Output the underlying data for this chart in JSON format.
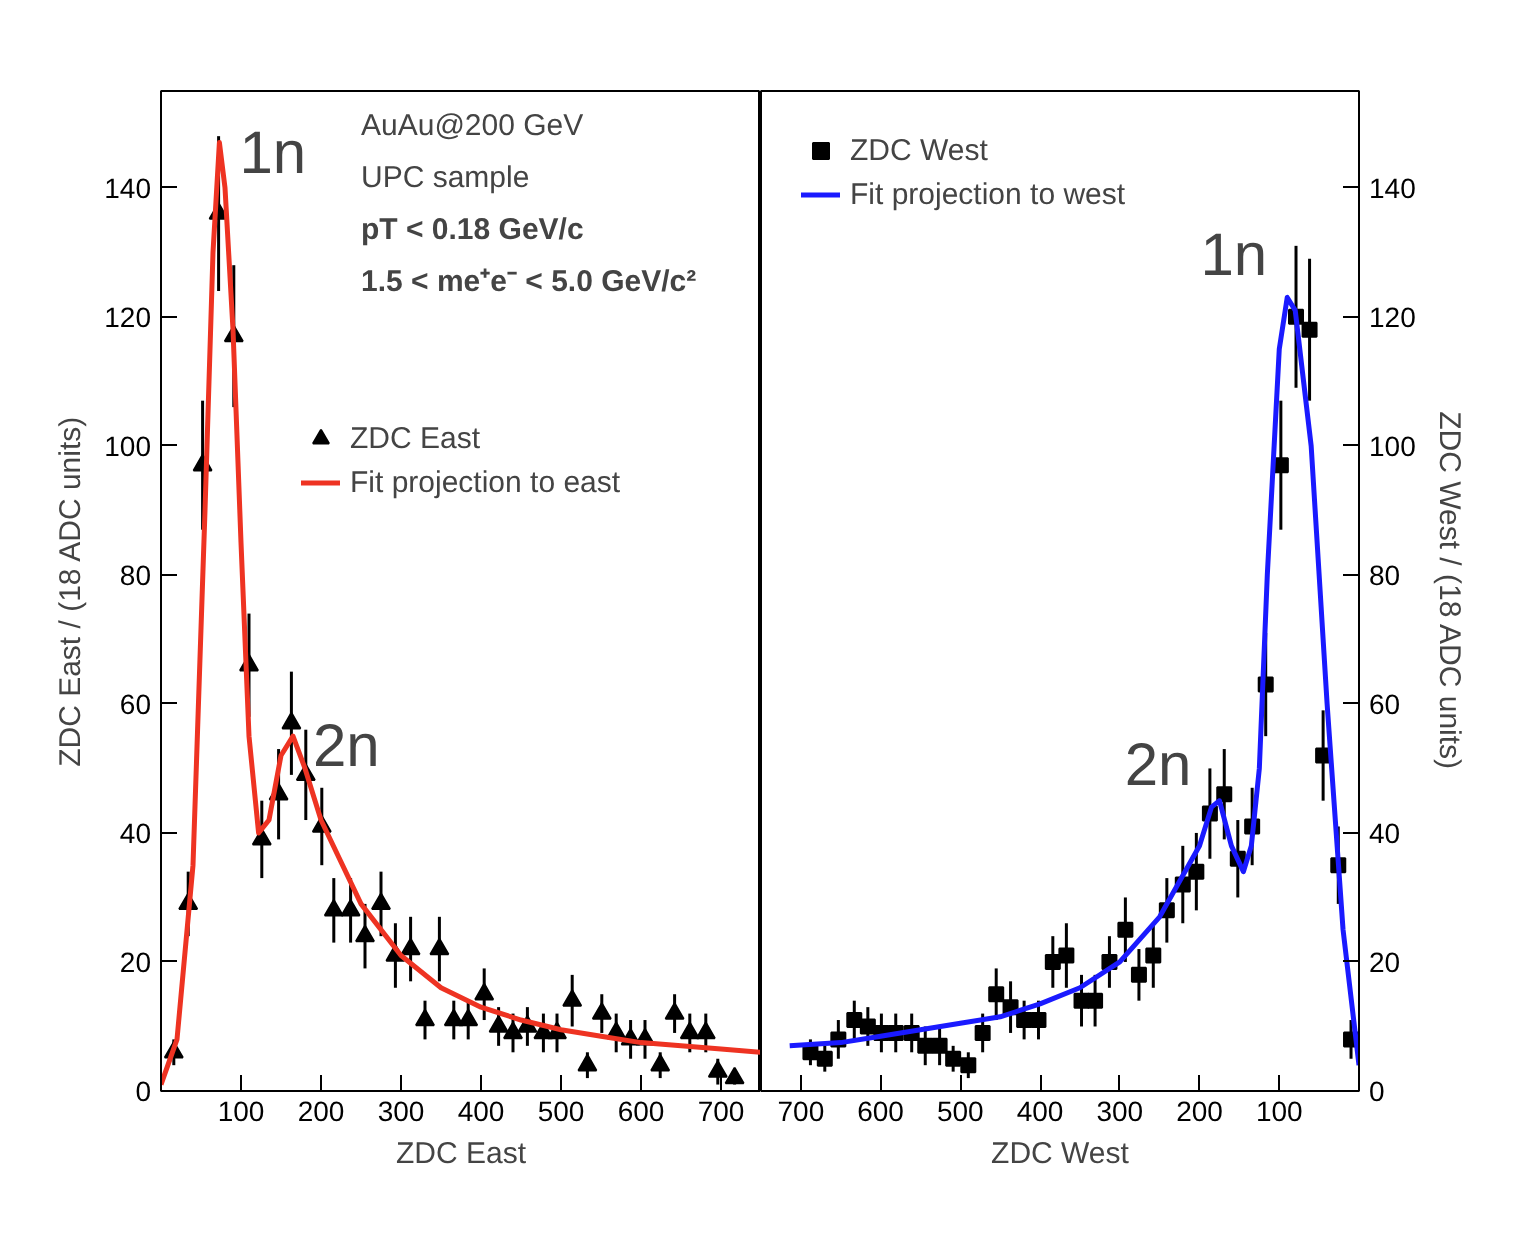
{
  "chart_data": [
    {
      "type": "scatter",
      "xlabel": "ZDC East",
      "ylabel": "ZDC East / (18 ADC units)",
      "xlim": [
        0,
        750
      ],
      "ylim": [
        0,
        155
      ],
      "xticks": [
        100,
        200,
        300,
        400,
        500,
        600,
        700
      ],
      "yticks": [
        0,
        20,
        40,
        60,
        80,
        100,
        120,
        140
      ],
      "grid": false,
      "legend": "top left",
      "annotations": [
        "AuAu@200 GeV",
        "UPC sample",
        "pT < 0.18 GeV/c",
        "1.5 < me⁺e⁻ < 5.0 GeV/c²",
        {
          "text": "1n",
          "x": 73,
          "y": 147
        },
        {
          "text": "2n",
          "x": 165,
          "y": 55
        }
      ],
      "series": [
        {
          "name": "ZDC East",
          "marker": "triangle",
          "color": "#000000",
          "x": [
            16,
            34,
            52,
            72,
            91,
            110,
            126,
            147,
            163,
            181,
            201,
            216,
            237,
            255,
            275,
            293,
            312,
            330,
            348,
            366,
            384,
            404,
            422,
            440,
            458,
            478,
            495,
            514,
            533,
            551,
            569,
            587,
            605,
            624,
            642,
            661,
            681,
            696,
            717
          ],
          "values": [
            6,
            29,
            97,
            136,
            117,
            66,
            39,
            46,
            57,
            49,
            41,
            28,
            28,
            24,
            29,
            21,
            22,
            11,
            22,
            11,
            11,
            15,
            10,
            9,
            10,
            9,
            9,
            14,
            4,
            12,
            9,
            8,
            8,
            4,
            12,
            9,
            9,
            3,
            2
          ],
          "errors": [
            2,
            5,
            10,
            12,
            11,
            8,
            6,
            7,
            8,
            7,
            6,
            5,
            5,
            5,
            5,
            5,
            5,
            3,
            5,
            3,
            3,
            4,
            3,
            3,
            3,
            3,
            3,
            4,
            2,
            3,
            3,
            3,
            3,
            2,
            3,
            3,
            3,
            2,
            1
          ]
        },
        {
          "name": "Fit projection to east",
          "type": "line",
          "color": "#ee3322",
          "x": [
            0,
            20,
            40,
            55,
            65,
            73,
            80,
            90,
            100,
            110,
            122,
            135,
            150,
            165,
            180,
            200,
            250,
            300,
            350,
            400,
            450,
            500,
            550,
            600,
            650,
            700,
            750
          ],
          "values": [
            1,
            8,
            35,
            90,
            130,
            147,
            140,
            118,
            85,
            55,
            40,
            42,
            52,
            55,
            50,
            42,
            29,
            21,
            16,
            13,
            11,
            9.5,
            8.5,
            7.5,
            7,
            6.5,
            6
          ]
        }
      ]
    },
    {
      "type": "scatter",
      "xlabel": "ZDC West",
      "ylabel": "ZDC West / (18 ADC units)",
      "xlim": [
        750,
        0
      ],
      "ylim": [
        0,
        155
      ],
      "xticks": [
        700,
        600,
        500,
        400,
        300,
        200,
        100
      ],
      "yticks": [
        0,
        20,
        40,
        60,
        80,
        100,
        120,
        140
      ],
      "grid": false,
      "legend": "top left",
      "annotations": [
        {
          "text": "1n",
          "x": 90,
          "y": 123
        },
        {
          "text": "2n",
          "x": 185,
          "y": 44
        }
      ],
      "series": [
        {
          "name": "ZDC West",
          "marker": "square",
          "color": "#000000",
          "x": [
            688,
            670,
            653,
            633,
            616,
            599,
            581,
            561,
            544,
            526,
            509,
            490,
            472,
            455,
            437,
            420,
            402,
            384,
            367,
            348,
            331,
            313,
            293,
            276,
            258,
            241,
            221,
            204,
            187,
            169,
            152,
            134,
            117,
            98,
            79,
            62,
            45,
            26,
            10
          ],
          "values": [
            6,
            5,
            8,
            11,
            10,
            9,
            9,
            9,
            7,
            7,
            5,
            4,
            9,
            15,
            13,
            11,
            11,
            20,
            21,
            14,
            14,
            20,
            25,
            18,
            21,
            28,
            32,
            34,
            43,
            46,
            36,
            41,
            63,
            97,
            120,
            118,
            52,
            35,
            8
          ],
          "errors": [
            2,
            2,
            3,
            3,
            3,
            3,
            3,
            3,
            3,
            3,
            2,
            2,
            3,
            4,
            4,
            3,
            3,
            4,
            5,
            4,
            4,
            4,
            5,
            4,
            5,
            5,
            6,
            6,
            7,
            7,
            6,
            6,
            8,
            10,
            11,
            11,
            7,
            6,
            3
          ]
        },
        {
          "name": "Fit projection to west",
          "type": "line",
          "color": "#1a1aff",
          "x": [
            0,
            20,
            40,
            60,
            80,
            90,
            100,
            115,
            125,
            135,
            145,
            160,
            175,
            185,
            200,
            250,
            300,
            350,
            400,
            450,
            500,
            550,
            600,
            650,
            714
          ],
          "values": [
            4,
            25,
            60,
            100,
            121,
            123,
            115,
            80,
            50,
            38,
            34,
            38,
            45,
            44,
            38,
            27,
            20,
            16,
            13.5,
            11.5,
            10.5,
            9.5,
            8.5,
            7.5,
            7
          ]
        }
      ]
    }
  ]
}
